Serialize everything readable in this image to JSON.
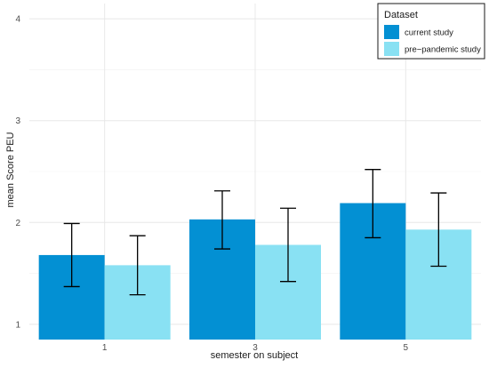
{
  "chart_data": {
    "type": "bar",
    "title": "",
    "xlabel": "semester on subject",
    "ylabel": "mean Score PEU",
    "categories": [
      "1",
      "3",
      "5"
    ],
    "yticks": [
      "1",
      "2",
      "3",
      "4"
    ],
    "ylim": [
      0.85,
      4.15
    ],
    "grid": true,
    "legend": {
      "title": "Dataset",
      "position": "top-right"
    },
    "series": [
      {
        "name": "current study",
        "color": "#0390d3",
        "values": [
          1.68,
          2.03,
          2.19
        ],
        "error_low": [
          1.37,
          1.74,
          1.85
        ],
        "error_high": [
          1.99,
          2.31,
          2.52
        ]
      },
      {
        "name": "pre−pandemic study",
        "color": "#89e1f3",
        "values": [
          1.58,
          1.78,
          1.93
        ],
        "error_low": [
          1.29,
          1.42,
          1.57
        ],
        "error_high": [
          1.87,
          2.14,
          2.29
        ]
      }
    ]
  }
}
